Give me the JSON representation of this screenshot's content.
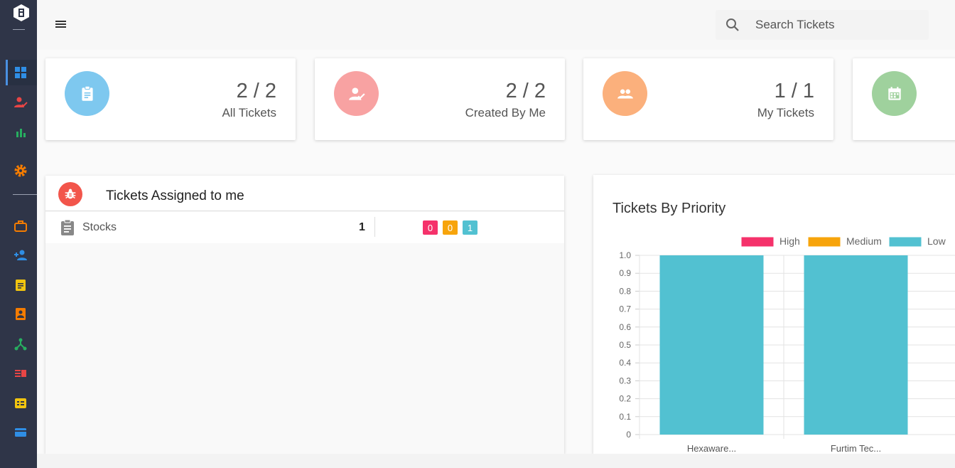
{
  "colors": {
    "sidebar": "#2f3548",
    "high": "#f5326b",
    "medium": "#f7a40b",
    "low": "#52c1d1"
  },
  "sidebar": {
    "items": [
      {
        "icon": "dashboard-icon",
        "color": "#2f8ee5"
      },
      {
        "icon": "assigned-user-icon",
        "color": "#e84545"
      },
      {
        "icon": "bar-chart-icon",
        "color": "#27ae60"
      },
      {
        "icon": "settings-icon",
        "color": "#f57c00"
      },
      {
        "icon": "briefcase-icon",
        "color": "#f57c00"
      },
      {
        "icon": "add-user-icon",
        "color": "#2f8ee5"
      },
      {
        "icon": "assignment-icon",
        "color": "#f1c40f"
      },
      {
        "icon": "contact-icon",
        "color": "#f57c00"
      },
      {
        "icon": "hierarchy-icon",
        "color": "#27ae60"
      },
      {
        "icon": "list-icon",
        "color": "#e84545"
      },
      {
        "icon": "checklist-icon",
        "color": "#f1c40f"
      },
      {
        "icon": "card-icon",
        "color": "#2f8ee5"
      }
    ]
  },
  "search": {
    "placeholder": "Search Tickets"
  },
  "cards": [
    {
      "count": "2 / 2",
      "label": "All Tickets",
      "color": "#7ec8ef",
      "icon": "clipboard-icon"
    },
    {
      "count": "2 / 2",
      "label": "Created By Me",
      "color": "#f8a2a2",
      "icon": "user-check-icon"
    },
    {
      "count": "1 / 1",
      "label": "My Tickets",
      "color": "#fbb07c",
      "icon": "group-icon"
    },
    {
      "count": "",
      "label": "",
      "color": "#9fd19d",
      "icon": "calendar-icon"
    }
  ],
  "assigned": {
    "title": "Tickets Assigned to me",
    "rows": [
      {
        "name": "Stocks",
        "count": "1",
        "high": "0",
        "medium": "0",
        "low": "1"
      }
    ]
  },
  "chart_data": {
    "type": "bar",
    "title": "Tickets By Priority",
    "categories": [
      "Hexaware...",
      "Furtim Tec..."
    ],
    "series": [
      {
        "name": "High",
        "values": [
          0,
          0
        ],
        "color": "#f5326b"
      },
      {
        "name": "Medium",
        "values": [
          0,
          0
        ],
        "color": "#f7a40b"
      },
      {
        "name": "Low",
        "values": [
          1,
          1
        ],
        "color": "#52c1d1"
      }
    ],
    "ylim": [
      0,
      1
    ],
    "yticks": [
      "1.0",
      "0.9",
      "0.8",
      "0.7",
      "0.6",
      "0.5",
      "0.4",
      "0.3",
      "0.2",
      "0.1",
      "0"
    ],
    "legend": "top-right",
    "grid": true
  }
}
